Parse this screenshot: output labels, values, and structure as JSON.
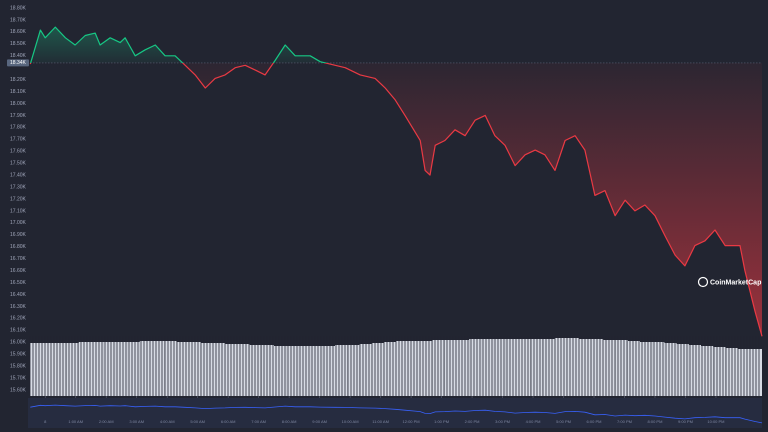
{
  "chart_data": {
    "type": "line",
    "watermark": "CoinMarketCap",
    "x": [
      -0.49,
      -0.16,
      0,
      0.33,
      0.66,
      0.98,
      1.31,
      1.64,
      1.8,
      2.13,
      2.46,
      2.62,
      2.95,
      3.28,
      3.61,
      3.93,
      4.26,
      4.59,
      4.92,
      5.25,
      5.57,
      5.9,
      6.23,
      6.56,
      6.89,
      7.21,
      7.54,
      7.87,
      8.2,
      8.69,
      9.02,
      9.51,
      9.84,
      10.33,
      10.82,
      11.15,
      11.48,
      11.8,
      12.13,
      12.3,
      12.46,
      12.62,
      12.79,
      13.11,
      13.44,
      13.77,
      14.1,
      14.43,
      14.75,
      15.08,
      15.41,
      15.74,
      16.07,
      16.39,
      16.72,
      17.05,
      17.38,
      17.7,
      18.03,
      18.36,
      18.69,
      19.02,
      19.34,
      19.67,
      20,
      20.33,
      20.66,
      20.98,
      21.31,
      21.64,
      21.97,
      22.3,
      22.79,
      22.95,
      23.28,
      23.51
    ],
    "series": [
      {
        "up_color": "#16c784",
        "down_color": "#ea3943",
        "values": [
          18330,
          18615,
          18550,
          18640,
          18550,
          18490,
          18570,
          18590,
          18490,
          18550,
          18510,
          18550,
          18400,
          18450,
          18490,
          18400,
          18400,
          18320,
          18240,
          18130,
          18210,
          18240,
          18300,
          18320,
          18280,
          18240,
          18360,
          18490,
          18400,
          18400,
          18350,
          18320,
          18300,
          18240,
          18210,
          18130,
          18030,
          17900,
          17760,
          17690,
          17440,
          17400,
          17650,
          17690,
          17780,
          17730,
          17860,
          17900,
          17730,
          17650,
          17480,
          17570,
          17610,
          17570,
          17440,
          17690,
          17730,
          17610,
          17230,
          17270,
          17060,
          17190,
          17100,
          17150,
          17060,
          16890,
          16730,
          16640,
          16810,
          16850,
          16940,
          16810,
          16810,
          16600,
          16260,
          16050
        ]
      }
    ],
    "baseline": {
      "value": 18340,
      "label": "18.34K"
    },
    "volume": {
      "color": "#e8ebf4",
      "values": [
        53,
        53,
        53,
        53,
        54,
        54,
        54,
        54,
        54,
        55,
        55,
        55,
        54,
        54,
        53,
        53,
        52,
        52,
        51,
        51,
        50,
        50,
        50,
        50,
        50,
        51,
        51,
        52,
        53,
        54,
        55,
        55,
        55,
        56,
        56,
        56,
        57,
        57,
        57,
        57,
        57,
        57,
        57,
        58,
        58,
        57,
        57,
        56,
        56,
        55,
        54,
        54,
        53,
        52,
        51,
        50,
        49,
        48,
        47,
        47
      ]
    },
    "xlim": [
      -0.5,
      23.51
    ],
    "ylim": [
      15600,
      18800
    ],
    "xticks": [
      {
        "value": 0,
        "label": "8"
      },
      {
        "value": 1,
        "label": "1:00 AM"
      },
      {
        "value": 2,
        "label": "2:00 AM"
      },
      {
        "value": 3,
        "label": "3:00 AM"
      },
      {
        "value": 4,
        "label": "4:00 AM"
      },
      {
        "value": 5,
        "label": "5:00 AM"
      },
      {
        "value": 6,
        "label": "6:00 AM"
      },
      {
        "value": 7,
        "label": "7:00 AM"
      },
      {
        "value": 8,
        "label": "8:00 AM"
      },
      {
        "value": 9,
        "label": "9:00 AM"
      },
      {
        "value": 10,
        "label": "10:00 AM"
      },
      {
        "value": 11,
        "label": "11:00 AM"
      },
      {
        "value": 12,
        "label": "12:00 PM"
      },
      {
        "value": 13,
        "label": "1:00 PM"
      },
      {
        "value": 14,
        "label": "2:00 PM"
      },
      {
        "value": 15,
        "label": "3:00 PM"
      },
      {
        "value": 16,
        "label": "4:00 PM"
      },
      {
        "value": 17,
        "label": "5:00 PM"
      },
      {
        "value": 18,
        "label": "6:00 PM"
      },
      {
        "value": 19,
        "label": "7:00 PM"
      },
      {
        "value": 20,
        "label": "8:00 PM"
      },
      {
        "value": 21,
        "label": "9:00 PM"
      },
      {
        "value": 22,
        "label": "10:00 PM"
      }
    ],
    "yticks": [
      {
        "value": 18800,
        "label": "18.80K"
      },
      {
        "value": 18700,
        "label": "18.70K"
      },
      {
        "value": 18600,
        "label": "18.60K"
      },
      {
        "value": 18500,
        "label": "18.50K"
      },
      {
        "value": 18400,
        "label": "18.40K"
      },
      {
        "value": 18200,
        "label": "18.20K"
      },
      {
        "value": 18100,
        "label": "18.10K"
      },
      {
        "value": 18000,
        "label": "18.00K"
      },
      {
        "value": 17900,
        "label": "17.90K"
      },
      {
        "value": 17800,
        "label": "17.80K"
      },
      {
        "value": 17700,
        "label": "17.70K"
      },
      {
        "value": 17600,
        "label": "17.60K"
      },
      {
        "value": 17500,
        "label": "17.50K"
      },
      {
        "value": 17400,
        "label": "17.40K"
      },
      {
        "value": 17300,
        "label": "17.30K"
      },
      {
        "value": 17200,
        "label": "17.20K"
      },
      {
        "value": 17100,
        "label": "17.10K"
      },
      {
        "value": 17000,
        "label": "17.00K"
      },
      {
        "value": 16900,
        "label": "16.90K"
      },
      {
        "value": 16800,
        "label": "16.80K"
      },
      {
        "value": 16700,
        "label": "16.70K"
      },
      {
        "value": 16600,
        "label": "16.60K"
      },
      {
        "value": 16500,
        "label": "16.50K"
      },
      {
        "value": 16400,
        "label": "16.40K"
      },
      {
        "value": 16300,
        "label": "16.30K"
      },
      {
        "value": 16200,
        "label": "16.20K"
      },
      {
        "value": 16100,
        "label": "16.10K"
      },
      {
        "value": 16000,
        "label": "16.00K"
      },
      {
        "value": 15900,
        "label": "15.90K"
      },
      {
        "value": 15800,
        "label": "15.80K"
      },
      {
        "value": 15700,
        "label": "15.70K"
      },
      {
        "value": 15600,
        "label": "15.60K"
      }
    ]
  }
}
